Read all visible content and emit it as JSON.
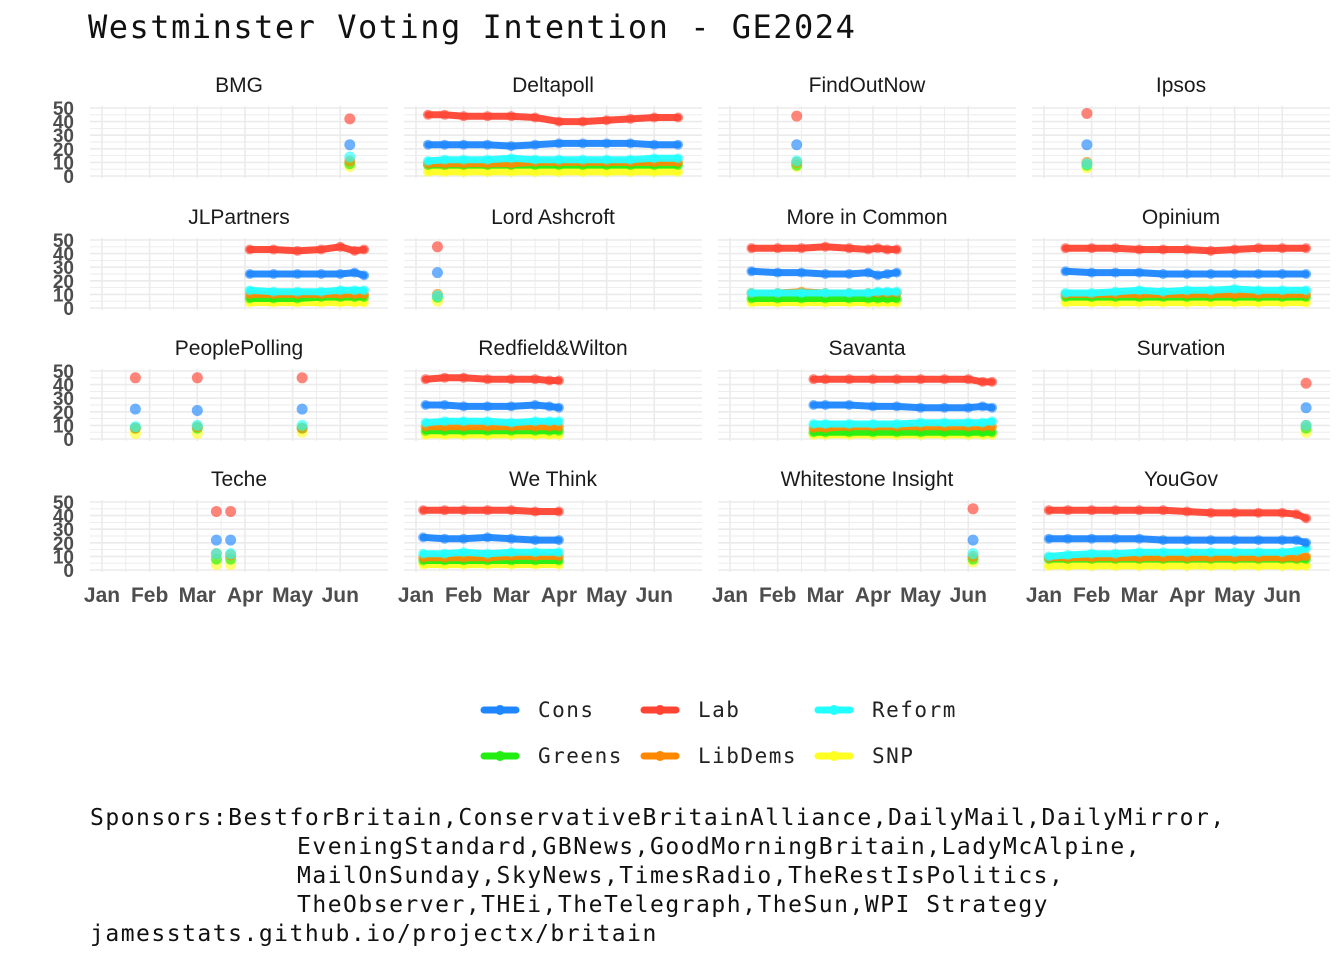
{
  "title": "Westminster Voting Intention - GE2024",
  "caption": {
    "lines": [
      "Sponsors:BestforBritain,ConservativeBritainAlliance,DailyMail,DailyMirror,",
      "EveningStandard,GBNews,GoodMorningBritain,LadyMcAlpine,",
      "MailOnSunday,SkyNews,TimesRadio,TheRestIsPolitics,",
      "TheObserver,THEi,TheTelegraph,TheSun,WPI Strategy",
      "jamesstats.github.io/projectx/britain"
    ]
  },
  "legend": {
    "position": "bottom",
    "items": [
      {
        "name": "Cons",
        "color": "#1e87ff"
      },
      {
        "name": "Lab",
        "color": "#ff4433"
      },
      {
        "name": "Reform",
        "color": "#22ffff"
      },
      {
        "name": "Greens",
        "color": "#22ee11"
      },
      {
        "name": "LibDems",
        "color": "#ff8800"
      },
      {
        "name": "SNP",
        "color": "#ffff22"
      }
    ]
  },
  "chart_data": {
    "type": "line",
    "facet_layout": "4x4",
    "x_axis": {
      "range": [
        "Jan",
        "Jun"
      ],
      "tick_labels": [
        "Jan",
        "Feb",
        "Mar",
        "Apr",
        "May",
        "Jun"
      ]
    },
    "y_axis": {
      "range": [
        0,
        50
      ],
      "tick_labels": [
        "0",
        "10",
        "20",
        "30",
        "40",
        "50"
      ]
    },
    "grid": true,
    "series_names": [
      "Cons",
      "Lab",
      "Reform",
      "Greens",
      "LibDems",
      "SNP"
    ],
    "panels": [
      {
        "name": "BMG",
        "mode": "points",
        "x": [
          5.2
        ],
        "series": {
          "Lab": [
            42
          ],
          "Cons": [
            23
          ],
          "Reform": [
            14
          ],
          "Greens": [
            9
          ],
          "LibDems": [
            11
          ],
          "SNP": [
            7
          ]
        }
      },
      {
        "name": "Deltapoll",
        "mode": "line",
        "x": [
          0.25,
          0.6,
          1.0,
          1.5,
          2.0,
          2.5,
          3.0,
          3.5,
          4.0,
          4.5,
          5.0,
          5.5
        ],
        "series": {
          "Lab": [
            45,
            45,
            44,
            44,
            44,
            43,
            40,
            40,
            41,
            42,
            43,
            43
          ],
          "Cons": [
            23,
            23,
            23,
            23,
            22,
            23,
            24,
            24,
            24,
            24,
            23,
            23
          ],
          "Reform": [
            11,
            12,
            12,
            12,
            13,
            12,
            12,
            12,
            12,
            12,
            13,
            13
          ],
          "Greens": [
            8,
            8,
            8,
            8,
            8,
            8,
            8,
            8,
            8,
            8,
            8,
            8
          ],
          "LibDems": [
            9,
            9,
            9,
            9,
            9,
            10,
            10,
            10,
            10,
            10,
            10,
            10
          ],
          "SNP": [
            3,
            3,
            3,
            3,
            3,
            3,
            3,
            3,
            3,
            3,
            3,
            3
          ]
        }
      },
      {
        "name": "FindOutNow",
        "mode": "points",
        "x": [
          1.4
        ],
        "series": {
          "Lab": [
            44
          ],
          "Cons": [
            23
          ],
          "Reform": [
            11
          ],
          "Greens": [
            8
          ],
          "LibDems": [
            10
          ],
          "SNP": [
            7
          ]
        }
      },
      {
        "name": "Ipsos",
        "mode": "points",
        "x": [
          0.9
        ],
        "series": {
          "Lab": [
            46
          ],
          "Cons": [
            23
          ],
          "Reform": [
            9
          ],
          "Greens": [
            8
          ],
          "LibDems": [
            10
          ],
          "SNP": [
            6
          ]
        }
      },
      {
        "name": "JLPartners",
        "mode": "line",
        "x": [
          3.1,
          3.6,
          4.1,
          4.6,
          5.0,
          5.3,
          5.5
        ],
        "series": {
          "Lab": [
            43,
            43,
            42,
            43,
            45,
            42,
            43
          ],
          "Cons": [
            25,
            25,
            25,
            25,
            25,
            26,
            24
          ],
          "Reform": [
            13,
            12,
            12,
            12,
            13,
            13,
            13
          ],
          "Greens": [
            7,
            7,
            7,
            8,
            8,
            8,
            8
          ],
          "LibDems": [
            10,
            10,
            10,
            10,
            10,
            10,
            10
          ],
          "SNP": [
            4,
            4,
            4,
            4,
            4,
            4,
            4
          ]
        }
      },
      {
        "name": "Lord Ashcroft",
        "mode": "points",
        "x": [
          0.45
        ],
        "series": {
          "Lab": [
            45
          ],
          "Cons": [
            26
          ],
          "Reform": [
            9
          ],
          "Greens": [
            8
          ],
          "LibDems": [
            10
          ],
          "SNP": [
            5
          ]
        }
      },
      {
        "name": "More in Common",
        "mode": "line",
        "x": [
          0.45,
          1.0,
          1.5,
          2.0,
          2.5,
          2.9,
          3.1,
          3.3,
          3.5
        ],
        "series": {
          "Lab": [
            44,
            44,
            44,
            45,
            44,
            43,
            44,
            43,
            43
          ],
          "Cons": [
            27,
            26,
            26,
            25,
            25,
            26,
            24,
            25,
            26
          ],
          "Reform": [
            11,
            11,
            11,
            11,
            11,
            11,
            12,
            12,
            12
          ],
          "Greens": [
            7,
            7,
            7,
            7,
            7,
            7,
            7,
            7,
            7
          ],
          "LibDems": [
            11,
            11,
            12,
            11,
            11,
            11,
            11,
            11,
            11
          ],
          "SNP": [
            4,
            4,
            4,
            4,
            4,
            4,
            4,
            4,
            4
          ]
        }
      },
      {
        "name": "Opinium",
        "mode": "line",
        "x": [
          0.45,
          1.0,
          1.5,
          2.0,
          2.5,
          3.0,
          3.5,
          4.0,
          4.5,
          5.0,
          5.5
        ],
        "series": {
          "Lab": [
            44,
            44,
            44,
            43,
            43,
            43,
            42,
            43,
            44,
            44,
            44
          ],
          "Cons": [
            27,
            26,
            26,
            26,
            25,
            25,
            25,
            25,
            25,
            25,
            25
          ],
          "Reform": [
            11,
            11,
            12,
            13,
            12,
            13,
            13,
            14,
            13,
            13,
            13
          ],
          "Greens": [
            8,
            8,
            8,
            8,
            8,
            8,
            8,
            8,
            8,
            8,
            8
          ],
          "LibDems": [
            10,
            10,
            10,
            10,
            10,
            10,
            10,
            10,
            10,
            10,
            10
          ],
          "SNP": [
            4,
            4,
            4,
            4,
            4,
            4,
            4,
            4,
            4,
            4,
            4
          ]
        }
      },
      {
        "name": "PeoplePolling",
        "mode": "points",
        "x": [
          0.7,
          2.0,
          4.2
        ],
        "series": {
          "Lab": [
            45,
            45,
            45
          ],
          "Cons": [
            22,
            21,
            22
          ],
          "Reform": [
            9,
            10,
            10
          ],
          "Greens": [
            8,
            8,
            8
          ],
          "LibDems": [
            8,
            9,
            8
          ],
          "SNP": [
            4,
            4,
            5
          ]
        }
      },
      {
        "name": "Redfield&Wilton",
        "mode": "line",
        "x": [
          0.2,
          0.6,
          1.0,
          1.5,
          2.0,
          2.5,
          2.8,
          3.0
        ],
        "series": {
          "Lab": [
            44,
            45,
            45,
            44,
            44,
            44,
            43,
            43
          ],
          "Cons": [
            25,
            25,
            24,
            24,
            24,
            25,
            24,
            23
          ],
          "Reform": [
            12,
            13,
            13,
            13,
            12,
            13,
            13,
            13
          ],
          "Greens": [
            6,
            6,
            6,
            6,
            6,
            6,
            6,
            6
          ],
          "LibDems": [
            9,
            9,
            9,
            9,
            9,
            9,
            9,
            9
          ],
          "SNP": [
            3,
            3,
            3,
            3,
            3,
            3,
            3,
            3
          ]
        }
      },
      {
        "name": "Savanta",
        "mode": "line",
        "x": [
          1.75,
          2.0,
          2.5,
          3.0,
          3.5,
          4.0,
          4.5,
          5.0,
          5.3,
          5.5
        ],
        "series": {
          "Lab": [
            44,
            44,
            44,
            44,
            44,
            44,
            44,
            44,
            42,
            42
          ],
          "Cons": [
            25,
            25,
            25,
            24,
            24,
            23,
            23,
            23,
            24,
            23
          ],
          "Reform": [
            11,
            11,
            11,
            11,
            11,
            12,
            12,
            12,
            12,
            13
          ],
          "Greens": [
            5,
            5,
            5,
            5,
            5,
            5,
            5,
            5,
            5,
            5
          ],
          "LibDems": [
            8,
            8,
            9,
            9,
            9,
            9,
            9,
            9,
            9,
            9
          ],
          "SNP": [
            3,
            3,
            3,
            3,
            3,
            3,
            3,
            3,
            3,
            3
          ]
        }
      },
      {
        "name": "Survation",
        "mode": "points",
        "x": [
          5.5
        ],
        "series": {
          "Lab": [
            41
          ],
          "Cons": [
            23
          ],
          "Reform": [
            10
          ],
          "Greens": [
            8
          ],
          "LibDems": [
            10
          ],
          "SNP": [
            5
          ]
        }
      },
      {
        "name": "Teche",
        "mode": "points",
        "x": [
          2.4,
          2.7
        ],
        "series": {
          "Lab": [
            43,
            43
          ],
          "Cons": [
            22,
            22
          ],
          "Reform": [
            12,
            12
          ],
          "Greens": [
            8,
            8
          ],
          "LibDems": [
            12,
            11
          ],
          "SNP": [
            4,
            4
          ]
        }
      },
      {
        "name": "We Think",
        "mode": "line",
        "x": [
          0.15,
          0.6,
          1.0,
          1.5,
          2.0,
          2.5,
          3.0
        ],
        "series": {
          "Lab": [
            44,
            44,
            44,
            44,
            44,
            43,
            43
          ],
          "Cons": [
            24,
            23,
            23,
            24,
            23,
            22,
            22
          ],
          "Reform": [
            12,
            12,
            13,
            12,
            13,
            13,
            13
          ],
          "Greens": [
            7,
            7,
            7,
            7,
            7,
            7,
            7
          ],
          "LibDems": [
            9,
            9,
            9,
            9,
            10,
            10,
            10
          ],
          "SNP": [
            4,
            4,
            4,
            4,
            4,
            4,
            4
          ]
        }
      },
      {
        "name": "Whitestone Insight",
        "mode": "points",
        "x": [
          5.1
        ],
        "series": {
          "Lab": [
            45
          ],
          "Cons": [
            22
          ],
          "Reform": [
            12
          ],
          "Greens": [
            8
          ],
          "LibDems": [
            10
          ],
          "SNP": [
            6
          ]
        }
      },
      {
        "name": "YouGov",
        "mode": "line",
        "x": [
          0.1,
          0.5,
          1.0,
          1.5,
          2.0,
          2.5,
          3.0,
          3.5,
          4.0,
          4.5,
          5.0,
          5.3,
          5.5
        ],
        "series": {
          "Lab": [
            44,
            44,
            44,
            44,
            44,
            44,
            43,
            42,
            42,
            42,
            42,
            41,
            38
          ],
          "Cons": [
            23,
            23,
            23,
            23,
            23,
            22,
            22,
            22,
            22,
            22,
            22,
            22,
            20
          ],
          "Reform": [
            10,
            11,
            12,
            12,
            13,
            13,
            13,
            13,
            13,
            13,
            13,
            14,
            16
          ],
          "Greens": [
            8,
            8,
            8,
            8,
            8,
            8,
            8,
            8,
            8,
            8,
            8,
            8,
            8
          ],
          "LibDems": [
            9,
            9,
            9,
            9,
            9,
            9,
            9,
            9,
            9,
            9,
            9,
            9,
            10
          ],
          "SNP": [
            3,
            3,
            3,
            3,
            3,
            3,
            3,
            3,
            3,
            3,
            3,
            3,
            3
          ]
        }
      }
    ]
  }
}
